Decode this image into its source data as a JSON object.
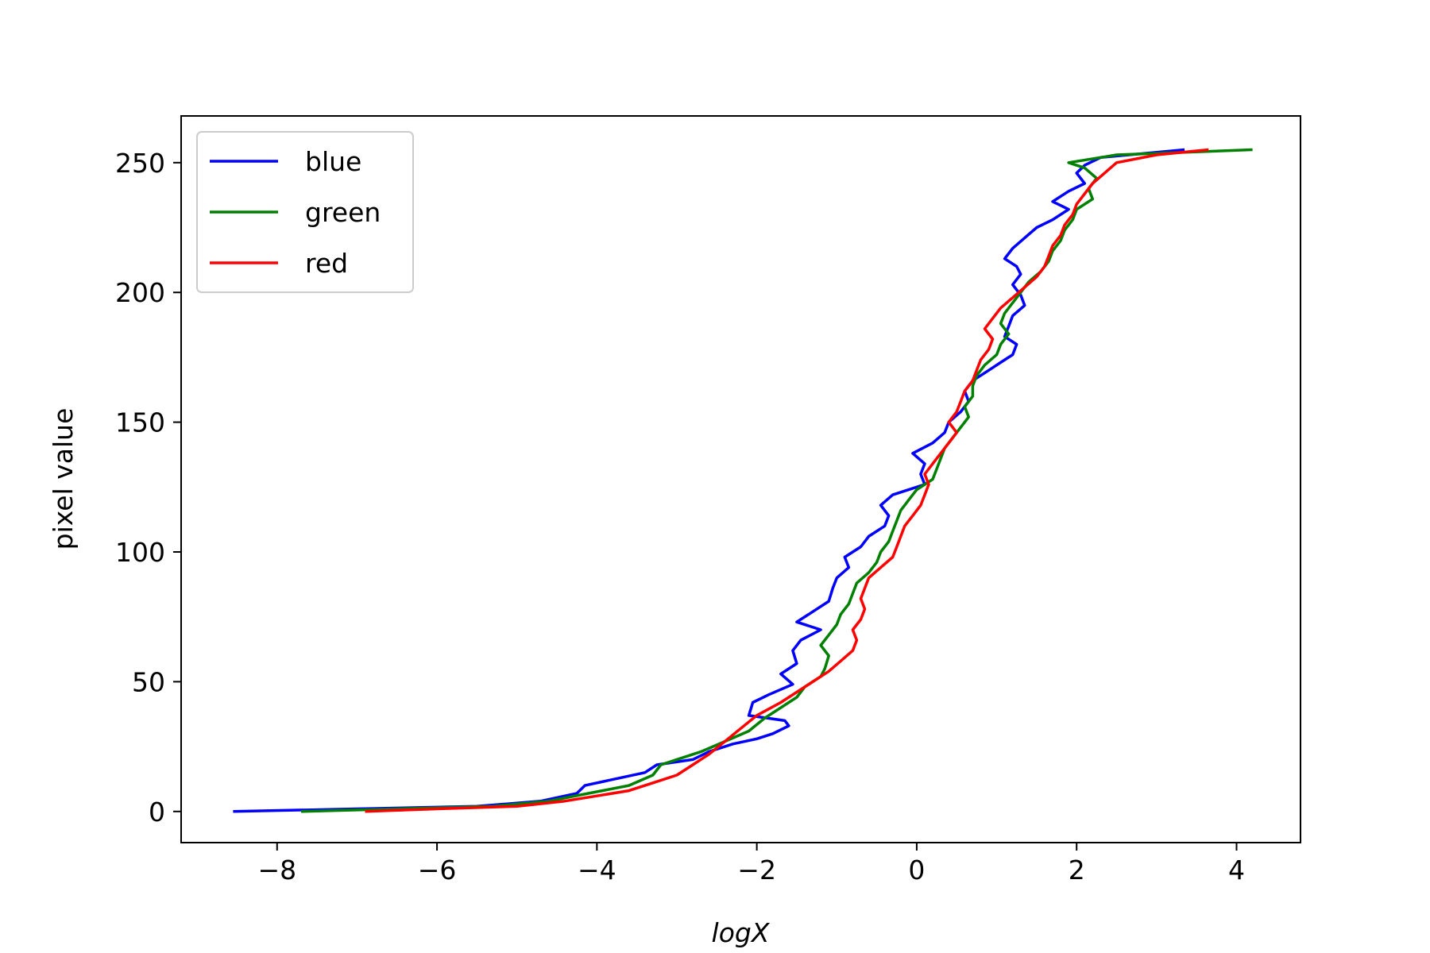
{
  "chart_data": {
    "type": "line",
    "title": "",
    "xlabel": "logX",
    "ylabel": "pixel value",
    "xlim": [
      -9.2,
      4.8
    ],
    "ylim": [
      -12,
      268
    ],
    "xticks": [
      -8,
      -6,
      -4,
      -2,
      0,
      2,
      4
    ],
    "xtick_labels": [
      "−8",
      "−6",
      "−4",
      "−2",
      "0",
      "2",
      "4"
    ],
    "yticks": [
      0,
      50,
      100,
      150,
      200,
      250
    ],
    "ytick_labels": [
      "0",
      "50",
      "100",
      "150",
      "200",
      "250"
    ],
    "grid": false,
    "legend": "upper-left",
    "series": [
      {
        "name": "blue",
        "color": "#0000ff",
        "points": [
          [
            -8.55,
            0
          ],
          [
            -7.0,
            1
          ],
          [
            -5.5,
            2
          ],
          [
            -4.7,
            4
          ],
          [
            -4.25,
            7
          ],
          [
            -4.15,
            10
          ],
          [
            -3.7,
            13
          ],
          [
            -3.4,
            15
          ],
          [
            -3.25,
            18
          ],
          [
            -2.8,
            20
          ],
          [
            -2.6,
            23
          ],
          [
            -2.3,
            26
          ],
          [
            -2.0,
            28
          ],
          [
            -1.8,
            30
          ],
          [
            -1.6,
            33
          ],
          [
            -1.65,
            35
          ],
          [
            -2.1,
            37
          ],
          [
            -2.05,
            42
          ],
          [
            -1.85,
            45
          ],
          [
            -1.55,
            49
          ],
          [
            -1.7,
            53
          ],
          [
            -1.5,
            57
          ],
          [
            -1.55,
            62
          ],
          [
            -1.45,
            66
          ],
          [
            -1.2,
            70
          ],
          [
            -1.5,
            73
          ],
          [
            -1.3,
            77
          ],
          [
            -1.1,
            81
          ],
          [
            -1.05,
            86
          ],
          [
            -1.0,
            90
          ],
          [
            -0.85,
            94
          ],
          [
            -0.9,
            98
          ],
          [
            -0.7,
            102
          ],
          [
            -0.6,
            106
          ],
          [
            -0.4,
            110
          ],
          [
            -0.35,
            114
          ],
          [
            -0.45,
            118
          ],
          [
            -0.3,
            122
          ],
          [
            -0.1,
            124
          ],
          [
            0.1,
            126
          ],
          [
            0.05,
            130
          ],
          [
            0.1,
            134
          ],
          [
            -0.05,
            138
          ],
          [
            0.2,
            142
          ],
          [
            0.35,
            146
          ],
          [
            0.4,
            150
          ],
          [
            0.55,
            154
          ],
          [
            0.65,
            158
          ],
          [
            0.6,
            162
          ],
          [
            0.7,
            166
          ],
          [
            0.9,
            170
          ],
          [
            1.05,
            173
          ],
          [
            1.2,
            176
          ],
          [
            1.25,
            180
          ],
          [
            1.1,
            183
          ],
          [
            1.15,
            187
          ],
          [
            1.2,
            191
          ],
          [
            1.35,
            195
          ],
          [
            1.3,
            199
          ],
          [
            1.2,
            203
          ],
          [
            1.3,
            207
          ],
          [
            1.25,
            210
          ],
          [
            1.1,
            213
          ],
          [
            1.2,
            217
          ],
          [
            1.35,
            221
          ],
          [
            1.5,
            225
          ],
          [
            1.7,
            228
          ],
          [
            1.9,
            232
          ],
          [
            1.7,
            235
          ],
          [
            1.9,
            239
          ],
          [
            2.1,
            242
          ],
          [
            2.0,
            246
          ],
          [
            2.1,
            249
          ],
          [
            2.3,
            252
          ],
          [
            3.35,
            255
          ]
        ]
      },
      {
        "name": "green",
        "color": "#008000",
        "points": [
          [
            -7.7,
            0
          ],
          [
            -6.5,
            1
          ],
          [
            -5.3,
            2
          ],
          [
            -4.6,
            4
          ],
          [
            -4.1,
            7
          ],
          [
            -3.6,
            10
          ],
          [
            -3.3,
            14
          ],
          [
            -3.2,
            18
          ],
          [
            -3.0,
            20
          ],
          [
            -2.7,
            23
          ],
          [
            -2.4,
            27
          ],
          [
            -2.1,
            31
          ],
          [
            -1.9,
            36
          ],
          [
            -1.7,
            40
          ],
          [
            -1.5,
            44
          ],
          [
            -1.4,
            48
          ],
          [
            -1.2,
            52
          ],
          [
            -1.15,
            55
          ],
          [
            -1.1,
            60
          ],
          [
            -1.2,
            64
          ],
          [
            -1.1,
            68
          ],
          [
            -1.0,
            72
          ],
          [
            -0.95,
            76
          ],
          [
            -0.85,
            80
          ],
          [
            -0.8,
            84
          ],
          [
            -0.75,
            88
          ],
          [
            -0.6,
            92
          ],
          [
            -0.5,
            96
          ],
          [
            -0.45,
            100
          ],
          [
            -0.35,
            104
          ],
          [
            -0.3,
            108
          ],
          [
            -0.25,
            112
          ],
          [
            -0.2,
            116
          ],
          [
            -0.1,
            120
          ],
          [
            0.0,
            124
          ],
          [
            0.2,
            128
          ],
          [
            0.25,
            132
          ],
          [
            0.3,
            136
          ],
          [
            0.35,
            140
          ],
          [
            0.45,
            144
          ],
          [
            0.55,
            148
          ],
          [
            0.65,
            152
          ],
          [
            0.6,
            156
          ],
          [
            0.7,
            160
          ],
          [
            0.7,
            164
          ],
          [
            0.75,
            168
          ],
          [
            0.85,
            172
          ],
          [
            1.0,
            176
          ],
          [
            1.05,
            180
          ],
          [
            1.15,
            184
          ],
          [
            1.05,
            188
          ],
          [
            1.1,
            192
          ],
          [
            1.2,
            196
          ],
          [
            1.3,
            200
          ],
          [
            1.4,
            204
          ],
          [
            1.55,
            208
          ],
          [
            1.65,
            212
          ],
          [
            1.7,
            216
          ],
          [
            1.8,
            220
          ],
          [
            1.85,
            224
          ],
          [
            1.95,
            228
          ],
          [
            2.0,
            232
          ],
          [
            2.2,
            236
          ],
          [
            2.15,
            240
          ],
          [
            2.25,
            244
          ],
          [
            2.1,
            248
          ],
          [
            1.9,
            250
          ],
          [
            2.5,
            253
          ],
          [
            4.2,
            255
          ]
        ]
      },
      {
        "name": "red",
        "color": "#ff0000",
        "points": [
          [
            -6.9,
            0
          ],
          [
            -6.0,
            1
          ],
          [
            -5.0,
            2
          ],
          [
            -4.4,
            4
          ],
          [
            -4.0,
            6
          ],
          [
            -3.6,
            8
          ],
          [
            -3.3,
            11
          ],
          [
            -3.0,
            14
          ],
          [
            -2.8,
            18
          ],
          [
            -2.6,
            22
          ],
          [
            -2.4,
            27
          ],
          [
            -2.2,
            32
          ],
          [
            -2.0,
            37
          ],
          [
            -1.7,
            42
          ],
          [
            -1.5,
            46
          ],
          [
            -1.3,
            50
          ],
          [
            -1.1,
            54
          ],
          [
            -0.95,
            58
          ],
          [
            -0.8,
            62
          ],
          [
            -0.75,
            66
          ],
          [
            -0.8,
            70
          ],
          [
            -0.7,
            74
          ],
          [
            -0.65,
            78
          ],
          [
            -0.7,
            82
          ],
          [
            -0.65,
            86
          ],
          [
            -0.6,
            90
          ],
          [
            -0.45,
            94
          ],
          [
            -0.3,
            98
          ],
          [
            -0.25,
            102
          ],
          [
            -0.2,
            106
          ],
          [
            -0.15,
            110
          ],
          [
            -0.05,
            114
          ],
          [
            0.05,
            118
          ],
          [
            0.1,
            122
          ],
          [
            0.15,
            126
          ],
          [
            0.1,
            130
          ],
          [
            0.2,
            134
          ],
          [
            0.3,
            138
          ],
          [
            0.4,
            142
          ],
          [
            0.5,
            146
          ],
          [
            0.4,
            150
          ],
          [
            0.5,
            154
          ],
          [
            0.55,
            158
          ],
          [
            0.6,
            162
          ],
          [
            0.7,
            166
          ],
          [
            0.75,
            170
          ],
          [
            0.8,
            174
          ],
          [
            0.9,
            178
          ],
          [
            0.95,
            182
          ],
          [
            0.85,
            186
          ],
          [
            0.95,
            190
          ],
          [
            1.05,
            194
          ],
          [
            1.2,
            198
          ],
          [
            1.35,
            202
          ],
          [
            1.5,
            206
          ],
          [
            1.6,
            210
          ],
          [
            1.65,
            214
          ],
          [
            1.7,
            218
          ],
          [
            1.8,
            222
          ],
          [
            1.85,
            226
          ],
          [
            1.95,
            230
          ],
          [
            2.0,
            234
          ],
          [
            2.1,
            238
          ],
          [
            2.2,
            242
          ],
          [
            2.35,
            246
          ],
          [
            2.5,
            250
          ],
          [
            3.0,
            253
          ],
          [
            3.65,
            255
          ]
        ]
      }
    ]
  }
}
